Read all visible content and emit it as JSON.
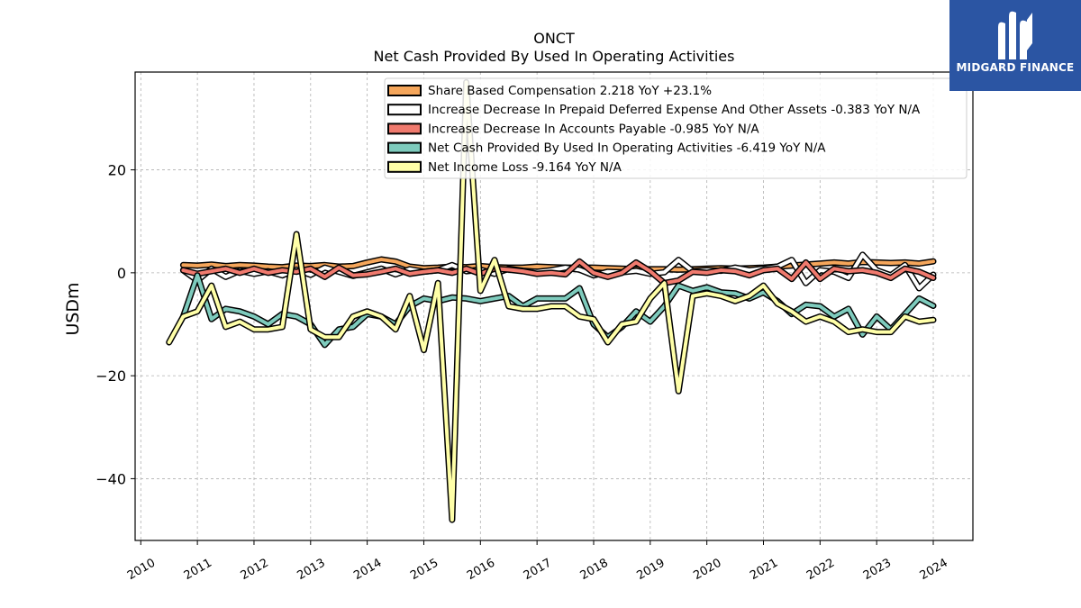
{
  "brand": {
    "name": "MIDGARD FINANCE",
    "bg_color": "#2b55a3"
  },
  "chart_data": {
    "type": "line",
    "title": "ONCT",
    "subtitle": "Net Cash Provided By Used In Operating Activities",
    "ylabel": "USDm",
    "xlabel": "",
    "xlim": [
      2009.9,
      2024.7
    ],
    "ylim": [
      -52,
      39
    ],
    "yticks": [
      20,
      0,
      -20,
      -40
    ],
    "ytick_labels": [
      "20",
      "0",
      "−20",
      "−40"
    ],
    "xticks": [
      2010,
      2011,
      2012,
      2013,
      2014,
      2015,
      2016,
      2017,
      2018,
      2019,
      2020,
      2021,
      2022,
      2023,
      2024
    ],
    "xtick_labels": [
      "2010",
      "2011",
      "2012",
      "2013",
      "2014",
      "2015",
      "2016",
      "2017",
      "2018",
      "2019",
      "2020",
      "2021",
      "2022",
      "2023",
      "2024"
    ],
    "grid": true,
    "legend_position": "top-right",
    "series": [
      {
        "name": "Share Based Compensation  2.218 YoY +23.1%",
        "color": "#f5a65b",
        "x": [
          2010.75,
          2011.0,
          2011.25,
          2011.5,
          2011.75,
          2012.0,
          2012.25,
          2012.5,
          2012.75,
          2013.0,
          2013.25,
          2013.5,
          2013.75,
          2014.0,
          2014.25,
          2014.5,
          2014.75,
          2015.0,
          2015.25,
          2015.5,
          2015.75,
          2016.0,
          2016.25,
          2016.5,
          2016.75,
          2017.0,
          2017.25,
          2017.5,
          2017.75,
          2018.0,
          2018.25,
          2018.5,
          2018.75,
          2019.0,
          2019.25,
          2019.5,
          2019.75,
          2020.0,
          2020.25,
          2020.5,
          2020.75,
          2021.0,
          2021.25,
          2021.5,
          2021.75,
          2022.0,
          2022.25,
          2022.5,
          2022.75,
          2023.0,
          2023.25,
          2023.5,
          2023.75,
          2024.0
        ],
        "values": [
          1.5,
          1.4,
          1.6,
          1.3,
          1.5,
          1.4,
          1.2,
          1.1,
          1.4,
          1.3,
          1.5,
          1.2,
          1.3,
          2.0,
          2.6,
          2.2,
          1.2,
          0.9,
          1.0,
          1.2,
          1.1,
          1.3,
          1.1,
          1.0,
          1.0,
          1.2,
          1.1,
          1.0,
          1.0,
          1.0,
          0.9,
          0.8,
          0.7,
          0.7,
          0.7,
          0.6,
          0.7,
          0.8,
          0.9,
          0.8,
          0.9,
          1.0,
          1.2,
          1.4,
          1.6,
          1.8,
          2.0,
          1.8,
          2.1,
          2.0,
          1.9,
          2.0,
          1.8,
          2.218
        ]
      },
      {
        "name": "Increase Decrease In Prepaid Deferred Expense And Other Assets  -0.383 YoY N/A",
        "color": "#ffffff",
        "x": [
          2010.75,
          2011.0,
          2011.25,
          2011.5,
          2011.75,
          2012.0,
          2012.25,
          2012.5,
          2012.75,
          2013.0,
          2013.25,
          2013.5,
          2013.75,
          2014.0,
          2014.25,
          2014.5,
          2014.75,
          2015.0,
          2015.25,
          2015.5,
          2015.75,
          2016.0,
          2016.25,
          2016.5,
          2016.75,
          2017.0,
          2017.25,
          2017.5,
          2017.75,
          2018.0,
          2018.25,
          2018.5,
          2018.75,
          2019.0,
          2019.25,
          2019.5,
          2019.75,
          2020.0,
          2020.25,
          2020.5,
          2020.75,
          2021.0,
          2021.25,
          2021.5,
          2021.75,
          2022.0,
          2022.25,
          2022.5,
          2022.75,
          2023.0,
          2023.25,
          2023.5,
          2023.75,
          2024.0
        ],
        "values": [
          0.5,
          -1.5,
          0.8,
          -0.8,
          0.4,
          -0.2,
          0.3,
          -0.5,
          0.6,
          -0.4,
          1.0,
          0.2,
          -0.6,
          0.1,
          0.8,
          -0.3,
          0.7,
          0.2,
          0.5,
          1.5,
          0.3,
          0.6,
          -0.2,
          0.8,
          0.4,
          0.2,
          0.5,
          1.0,
          0.6,
          -0.5,
          0.2,
          0.1,
          0.4,
          -0.2,
          0.1,
          2.5,
          0.3,
          0.5,
          0.4,
          1.0,
          0.5,
          0.8,
          1.2,
          2.5,
          -2.0,
          0.5,
          0.2,
          -1.0,
          3.5,
          0.5,
          -0.5,
          1.5,
          -3.0,
          -0.383
        ]
      },
      {
        "name": "Increase Decrease In Accounts Payable  -0.985 YoY N/A",
        "color": "#f07a6e",
        "x": [
          2010.75,
          2011.0,
          2011.25,
          2011.5,
          2011.75,
          2012.0,
          2012.25,
          2012.5,
          2012.75,
          2013.0,
          2013.25,
          2013.5,
          2013.75,
          2014.0,
          2014.25,
          2014.5,
          2014.75,
          2015.0,
          2015.25,
          2015.5,
          2015.75,
          2016.0,
          2016.25,
          2016.5,
          2016.75,
          2017.0,
          2017.25,
          2017.5,
          2017.75,
          2018.0,
          2018.25,
          2018.5,
          2018.75,
          2019.0,
          2019.25,
          2019.5,
          2019.75,
          2020.0,
          2020.25,
          2020.5,
          2020.75,
          2021.0,
          2021.25,
          2021.5,
          2021.75,
          2022.0,
          2022.25,
          2022.5,
          2022.75,
          2023.0,
          2023.25,
          2023.5,
          2023.75,
          2024.0
        ],
        "values": [
          0.5,
          -0.2,
          0.3,
          0.8,
          0.0,
          0.8,
          0.0,
          0.5,
          0.2,
          0.8,
          -0.8,
          1.0,
          -0.5,
          -0.3,
          0.2,
          0.8,
          -0.2,
          0.2,
          0.5,
          0.0,
          0.8,
          -0.2,
          0.8,
          0.6,
          0.3,
          -0.2,
          0.0,
          -0.3,
          2.2,
          0.0,
          -0.8,
          0.0,
          2.0,
          0.3,
          -2.0,
          -1.5,
          0.2,
          0.0,
          0.5,
          0.3,
          -0.5,
          0.5,
          0.8,
          -1.2,
          2.0,
          -1.2,
          0.8,
          0.3,
          0.5,
          0.0,
          -1.0,
          0.8,
          0.2,
          -0.985
        ]
      },
      {
        "name": "Net Cash Provided By Used In Operating Activities  -6.419 YoY N/A",
        "color": "#7ecbbd",
        "x": [
          2010.75,
          2011.0,
          2011.25,
          2011.5,
          2011.75,
          2012.0,
          2012.25,
          2012.5,
          2012.75,
          2013.0,
          2013.25,
          2013.5,
          2013.75,
          2014.0,
          2014.25,
          2014.5,
          2014.75,
          2015.0,
          2015.25,
          2015.5,
          2015.75,
          2016.0,
          2016.25,
          2016.5,
          2016.75,
          2017.0,
          2017.25,
          2017.5,
          2017.75,
          2018.0,
          2018.25,
          2018.5,
          2018.75,
          2019.0,
          2019.25,
          2019.5,
          2019.75,
          2020.0,
          2020.25,
          2020.5,
          2020.75,
          2021.0,
          2021.25,
          2021.5,
          2021.75,
          2022.0,
          2022.25,
          2022.5,
          2022.75,
          2023.0,
          2023.25,
          2023.5,
          2023.75,
          2024.0
        ],
        "values": [
          -8.5,
          -0.5,
          -9.0,
          -7.0,
          -7.5,
          -8.5,
          -10.0,
          -8.0,
          -8.5,
          -10.0,
          -14.0,
          -11.0,
          -10.5,
          -8.0,
          -8.5,
          -10.0,
          -6.5,
          -5.0,
          -5.5,
          -4.8,
          -5.0,
          -5.5,
          -5.0,
          -4.5,
          -6.5,
          -5.0,
          -5.0,
          -5.0,
          -3.0,
          -10.0,
          -12.5,
          -10.5,
          -7.5,
          -9.5,
          -6.5,
          -2.5,
          -3.5,
          -2.8,
          -3.8,
          -4.0,
          -5.0,
          -3.8,
          -5.5,
          -8.0,
          -6.2,
          -6.5,
          -8.5,
          -7.0,
          -12.0,
          -8.5,
          -11.0,
          -8.0,
          -5.0,
          -6.419
        ]
      },
      {
        "name": "Net Income Loss  -9.164 YoY N/A",
        "color": "#ffffa8",
        "x": [
          2010.5,
          2010.75,
          2011.0,
          2011.25,
          2011.5,
          2011.75,
          2012.0,
          2012.25,
          2012.5,
          2012.75,
          2013.0,
          2013.25,
          2013.5,
          2013.75,
          2014.0,
          2014.25,
          2014.5,
          2014.75,
          2015.0,
          2015.25,
          2015.5,
          2015.75,
          2016.0,
          2016.25,
          2016.5,
          2016.75,
          2017.0,
          2017.25,
          2017.5,
          2017.75,
          2018.0,
          2018.25,
          2018.5,
          2018.75,
          2019.0,
          2019.25,
          2019.5,
          2019.75,
          2020.0,
          2020.25,
          2020.5,
          2020.75,
          2021.0,
          2021.25,
          2021.5,
          2021.75,
          2022.0,
          2022.25,
          2022.5,
          2022.75,
          2023.0,
          2023.25,
          2023.5,
          2023.75,
          2024.0
        ],
        "values": [
          -13.5,
          -8.5,
          -7.5,
          -2.5,
          -10.5,
          -9.5,
          -11.0,
          -11.0,
          -10.5,
          7.5,
          -11.0,
          -12.5,
          -12.5,
          -8.5,
          -7.5,
          -8.5,
          -11.0,
          -4.5,
          -15.0,
          -2.0,
          -48.0,
          37.0,
          -3.5,
          2.5,
          -6.5,
          -7.0,
          -7.0,
          -6.5,
          -6.5,
          -8.5,
          -9.0,
          -13.5,
          -10.0,
          -9.5,
          -5.0,
          -2.0,
          -23.0,
          -4.5,
          -4.0,
          -4.5,
          -5.5,
          -4.5,
          -2.5,
          -6.0,
          -7.5,
          -9.5,
          -8.5,
          -9.5,
          -11.5,
          -11.0,
          -11.5,
          -11.5,
          -8.5,
          -9.5,
          -9.164
        ]
      }
    ]
  }
}
